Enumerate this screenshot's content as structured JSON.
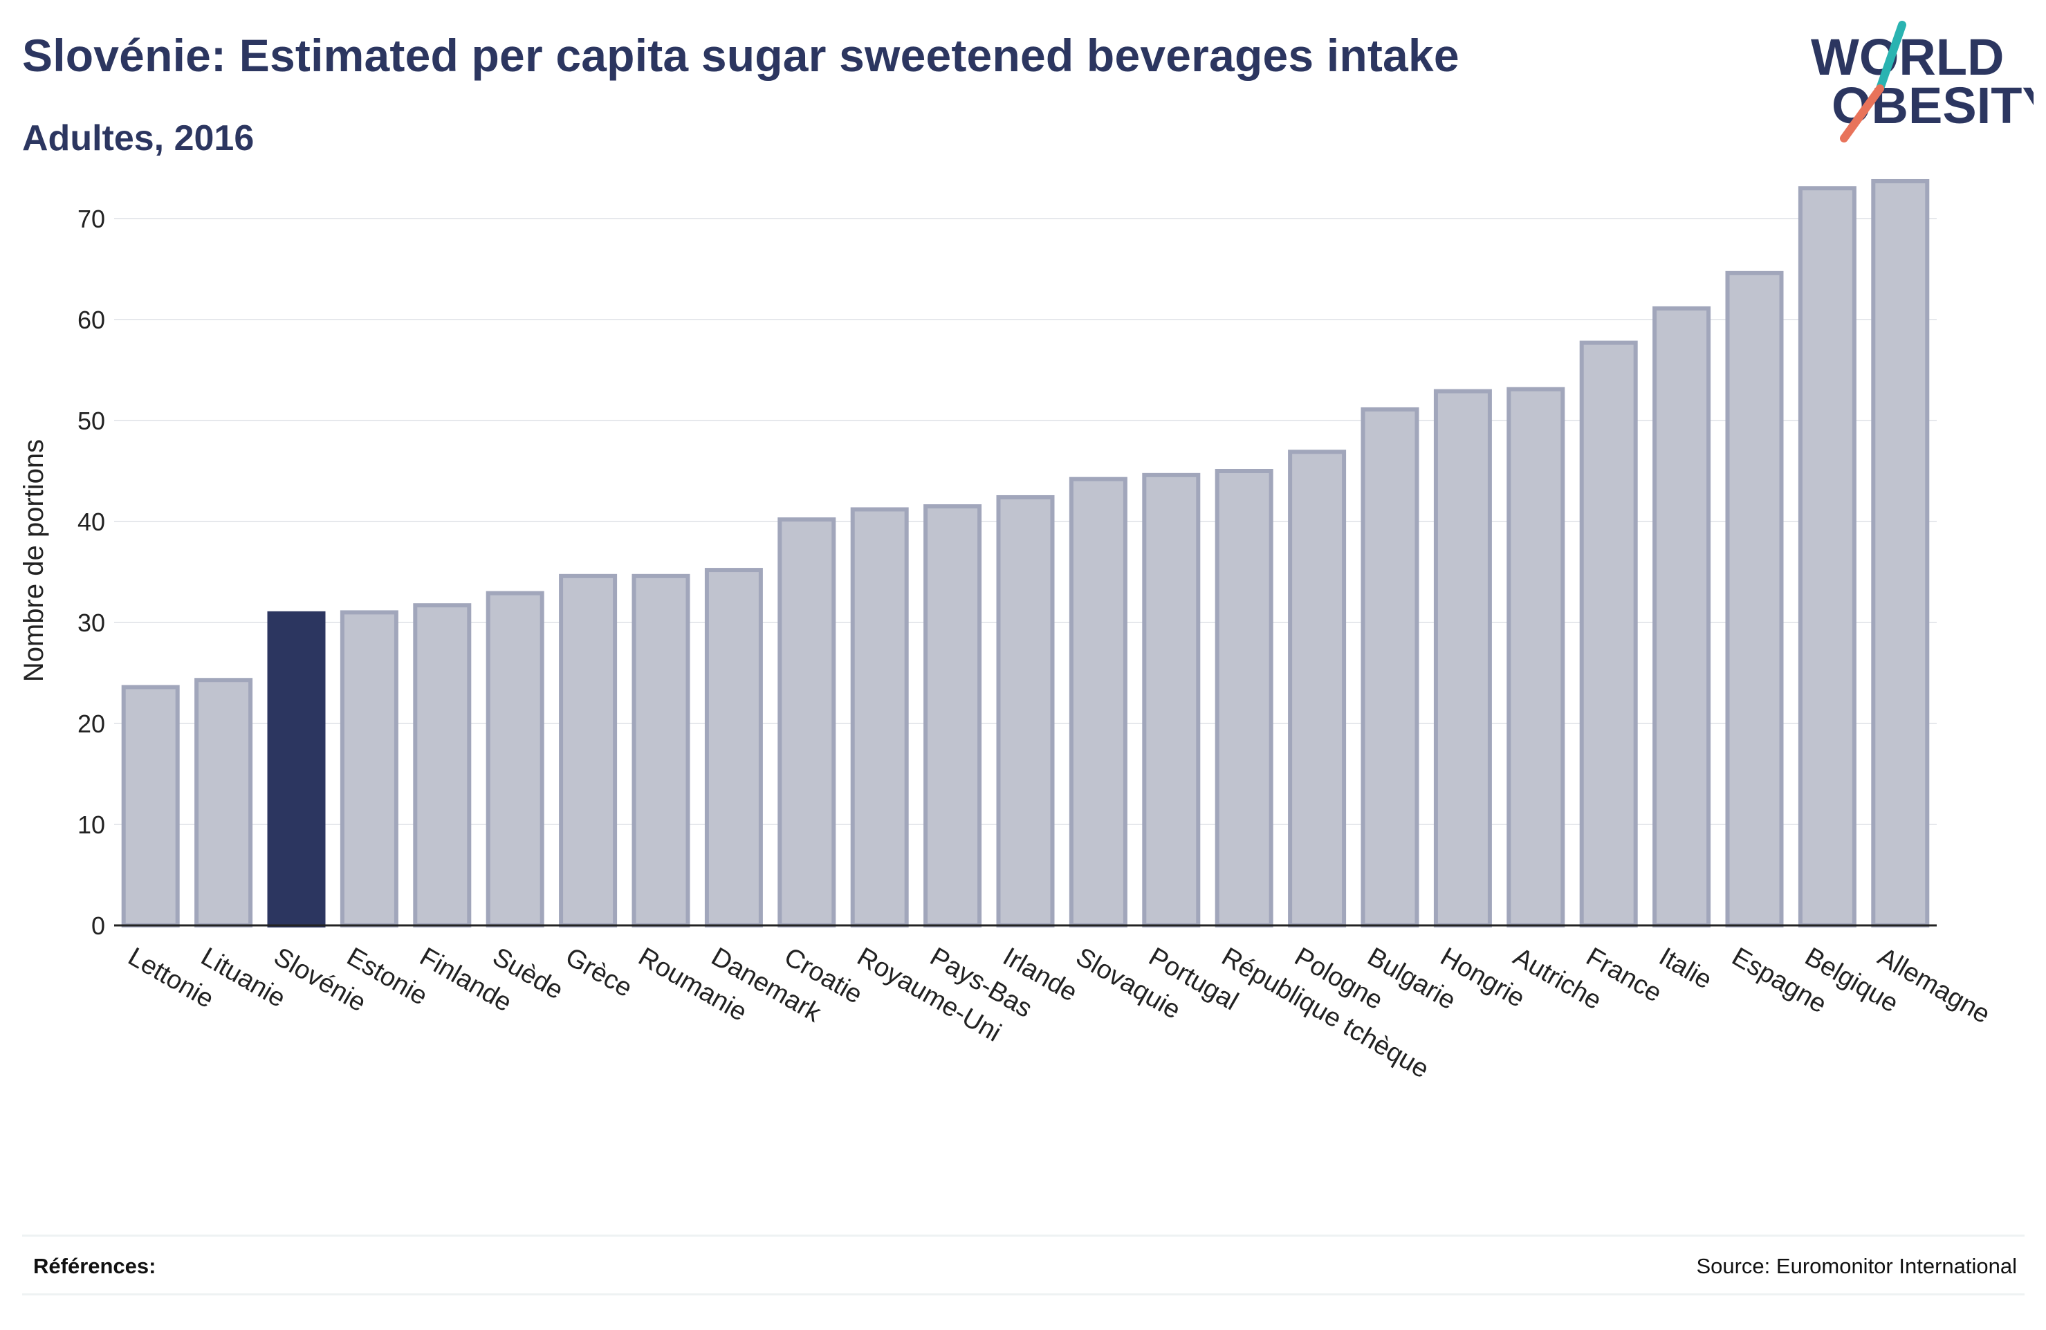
{
  "header": {
    "title": "Slovénie: Estimated per capita sugar sweetened beverages intake",
    "subtitle": "Adultes, 2016"
  },
  "logo": {
    "line1": "WORLD",
    "line2": "OBESITY",
    "text_color": "#2c3660",
    "accent_teal": "#2ab3b1",
    "accent_coral": "#e8735a"
  },
  "footer": {
    "references_label": "Références:",
    "source": "Source: Euromonitor International"
  },
  "colors": {
    "bar_fill": "#c0c3cf",
    "bar_stroke": "#a1a6bb",
    "highlight_fill": "#2c3660",
    "grid": "#e6e8ec",
    "axis": "#222222",
    "text": "#222222"
  },
  "chart_data": {
    "type": "bar",
    "title": "Slovénie: Estimated per capita sugar sweetened beverages intake",
    "subtitle": "Adultes, 2016",
    "xlabel": "",
    "ylabel": "Nombre de portions",
    "ylim": [
      0,
      75
    ],
    "yticks": [
      0,
      10,
      20,
      30,
      40,
      50,
      60,
      70
    ],
    "grid": true,
    "highlight": "Slovénie",
    "categories": [
      "Lettonie",
      "Lituanie",
      "Slovénie",
      "Estonie",
      "Finlande",
      "Suède",
      "Grèce",
      "Roumanie",
      "Danemark",
      "Croatie",
      "Royaume-Uni",
      "Pays-Bas",
      "Irlande",
      "Slovaquie",
      "Portugal",
      "République tchèque",
      "Pologne",
      "Bulgarie",
      "Hongrie",
      "Autriche",
      "France",
      "Italie",
      "Espagne",
      "Belgique",
      "Allemagne"
    ],
    "values": [
      23.6,
      24.3,
      30.9,
      31.0,
      31.7,
      32.9,
      34.6,
      34.6,
      35.2,
      40.2,
      41.2,
      41.5,
      42.4,
      44.2,
      44.6,
      45.0,
      46.9,
      51.1,
      52.9,
      53.1,
      57.7,
      61.1,
      64.6,
      73.0,
      73.7
    ]
  }
}
